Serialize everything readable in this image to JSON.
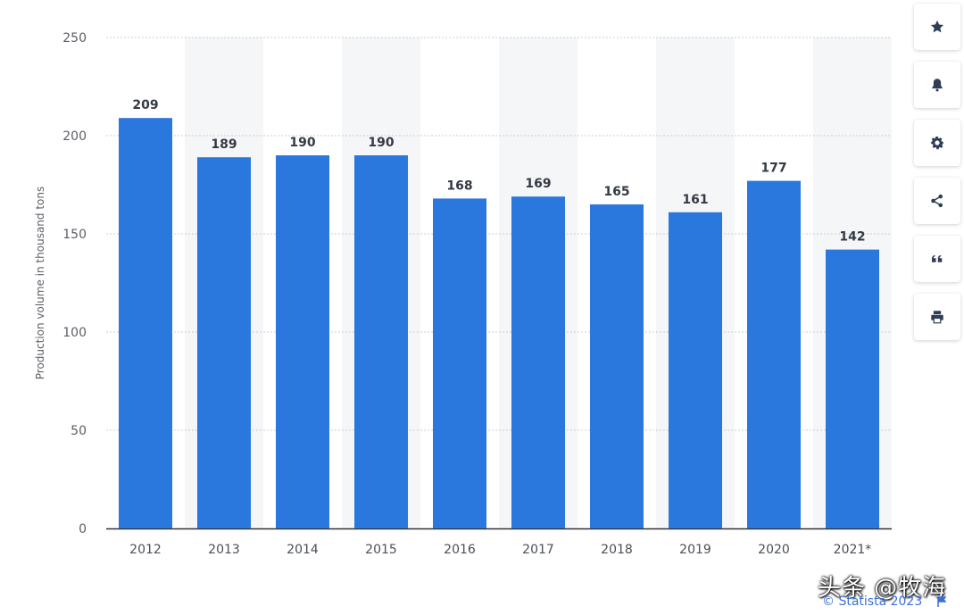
{
  "chart_data": {
    "type": "bar",
    "categories": [
      "2012",
      "2013",
      "2014",
      "2015",
      "2016",
      "2017",
      "2018",
      "2019",
      "2020",
      "2021*"
    ],
    "values": [
      209,
      189,
      190,
      190,
      168,
      169,
      165,
      161,
      177,
      142
    ],
    "ylabel": "Production volume in thousand tons",
    "xlabel": "",
    "ylim": [
      0,
      250
    ],
    "yticks": [
      0,
      50,
      100,
      150,
      200,
      250
    ],
    "grid": true,
    "colors": {
      "bar": "#2a78dd",
      "alt_band": "#f5f6f8",
      "grid": "#c9ccd1",
      "axis": "#333333"
    }
  },
  "toolbar": {
    "buttons": [
      {
        "icon": "star-icon"
      },
      {
        "icon": "bell-icon"
      },
      {
        "icon": "gear-icon"
      },
      {
        "icon": "share-icon"
      },
      {
        "icon": "quote-icon"
      },
      {
        "icon": "print-icon"
      }
    ]
  },
  "watermark": "头条 @牧海",
  "credit": "© Statista 2023"
}
